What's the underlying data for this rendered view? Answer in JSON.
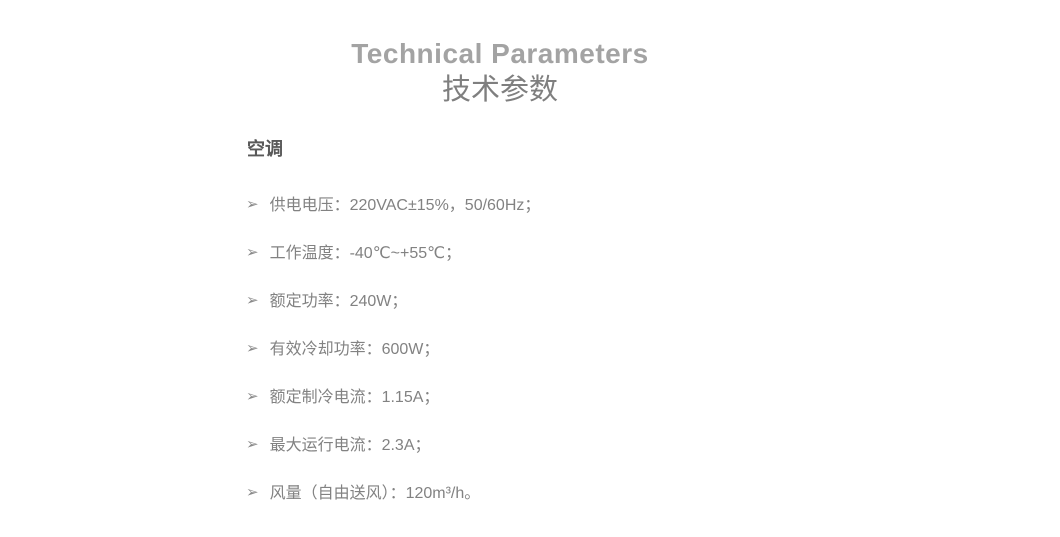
{
  "page": {
    "title_en": "Technical Parameters",
    "title_zh": "技术参数",
    "section_heading": "空调",
    "bullet_glyph": "➢",
    "items": [
      "供电电压：220VAC±15%，50/60Hz；",
      "工作温度：-40℃~+55℃；",
      "额定功率：240W；",
      "有效冷却功率：600W；",
      "额定制冷电流：1.15A；",
      "最大运行电流：2.3A；",
      "风量（自由送风）：120m³/h。"
    ],
    "colors": {
      "background": "#ffffff",
      "title_en": "#a3a3a3",
      "title_zh": "#7f7f7f",
      "section_heading": "#595959",
      "body_text": "#828282"
    }
  }
}
